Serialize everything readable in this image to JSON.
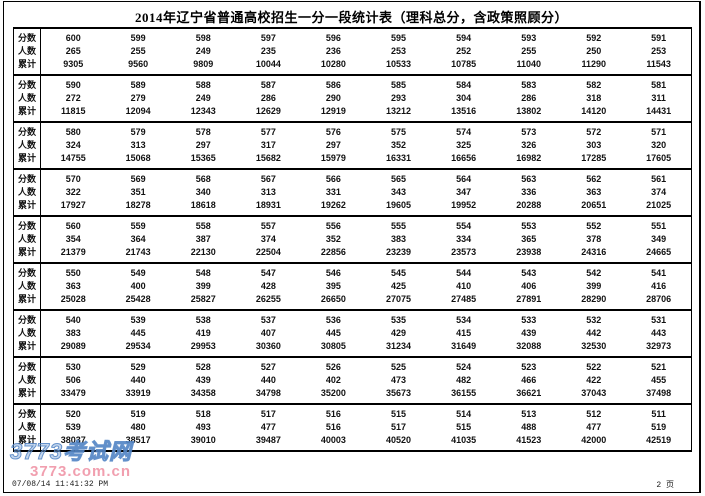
{
  "title": "2014年辽宁省普通高校招生一分一段统计表（理科总分，含政策照顾分）",
  "table": {
    "row_labels": {
      "score": "分数",
      "count": "人数",
      "cumulative": "累计"
    },
    "groups": [
      {
        "scores": [
          600,
          599,
          598,
          597,
          596,
          595,
          594,
          593,
          592,
          591
        ],
        "counts": [
          265,
          255,
          249,
          235,
          236,
          253,
          252,
          255,
          250,
          253
        ],
        "cumulatives": [
          9305,
          9560,
          9809,
          10044,
          10280,
          10533,
          10785,
          11040,
          11290,
          11543
        ]
      },
      {
        "scores": [
          590,
          589,
          588,
          587,
          586,
          585,
          584,
          583,
          582,
          581
        ],
        "counts": [
          272,
          279,
          249,
          286,
          290,
          293,
          304,
          286,
          318,
          311
        ],
        "cumulatives": [
          11815,
          12094,
          12343,
          12629,
          12919,
          13212,
          13516,
          13802,
          14120,
          14431
        ]
      },
      {
        "scores": [
          580,
          579,
          578,
          577,
          576,
          575,
          574,
          573,
          572,
          571
        ],
        "counts": [
          324,
          313,
          297,
          317,
          297,
          352,
          325,
          326,
          303,
          320
        ],
        "cumulatives": [
          14755,
          15068,
          15365,
          15682,
          15979,
          16331,
          16656,
          16982,
          17285,
          17605
        ]
      },
      {
        "scores": [
          570,
          569,
          568,
          567,
          566,
          565,
          564,
          563,
          562,
          561
        ],
        "counts": [
          322,
          351,
          340,
          313,
          331,
          343,
          347,
          336,
          363,
          374
        ],
        "cumulatives": [
          17927,
          18278,
          18618,
          18931,
          19262,
          19605,
          19952,
          20288,
          20651,
          21025
        ]
      },
      {
        "scores": [
          560,
          559,
          558,
          557,
          556,
          555,
          554,
          553,
          552,
          551
        ],
        "counts": [
          354,
          364,
          387,
          374,
          352,
          383,
          334,
          365,
          378,
          349
        ],
        "cumulatives": [
          21379,
          21743,
          22130,
          22504,
          22856,
          23239,
          23573,
          23938,
          24316,
          24665
        ]
      },
      {
        "scores": [
          550,
          549,
          548,
          547,
          546,
          545,
          544,
          543,
          542,
          541
        ],
        "counts": [
          363,
          400,
          399,
          428,
          395,
          425,
          410,
          406,
          399,
          416
        ],
        "cumulatives": [
          25028,
          25428,
          25827,
          26255,
          26650,
          27075,
          27485,
          27891,
          28290,
          28706
        ]
      },
      {
        "scores": [
          540,
          539,
          538,
          537,
          536,
          535,
          534,
          533,
          532,
          531
        ],
        "counts": [
          383,
          445,
          419,
          407,
          445,
          429,
          415,
          439,
          442,
          443
        ],
        "cumulatives": [
          29089,
          29534,
          29953,
          30360,
          30805,
          31234,
          31649,
          32088,
          32530,
          32973
        ]
      },
      {
        "scores": [
          530,
          529,
          528,
          527,
          526,
          525,
          524,
          523,
          522,
          521
        ],
        "counts": [
          506,
          440,
          439,
          440,
          402,
          473,
          482,
          466,
          422,
          455
        ],
        "cumulatives": [
          33479,
          33919,
          34358,
          34798,
          35200,
          35673,
          36155,
          36621,
          37043,
          37498
        ]
      },
      {
        "scores": [
          520,
          519,
          518,
          517,
          516,
          515,
          514,
          513,
          512,
          511
        ],
        "counts": [
          539,
          480,
          493,
          477,
          516,
          517,
          515,
          488,
          477,
          519
        ],
        "cumulatives": [
          38037,
          38517,
          39010,
          39487,
          40003,
          40520,
          41035,
          41523,
          42000,
          42519
        ]
      }
    ]
  },
  "watermark": {
    "site_name": "3773考试网",
    "site_url": "3773.com.cn",
    "name_color": "#7da5d7",
    "url_color": "#ee879b"
  },
  "footer": {
    "timestamp": "07/08/14 11:41:32 PM",
    "page": "2 页"
  }
}
